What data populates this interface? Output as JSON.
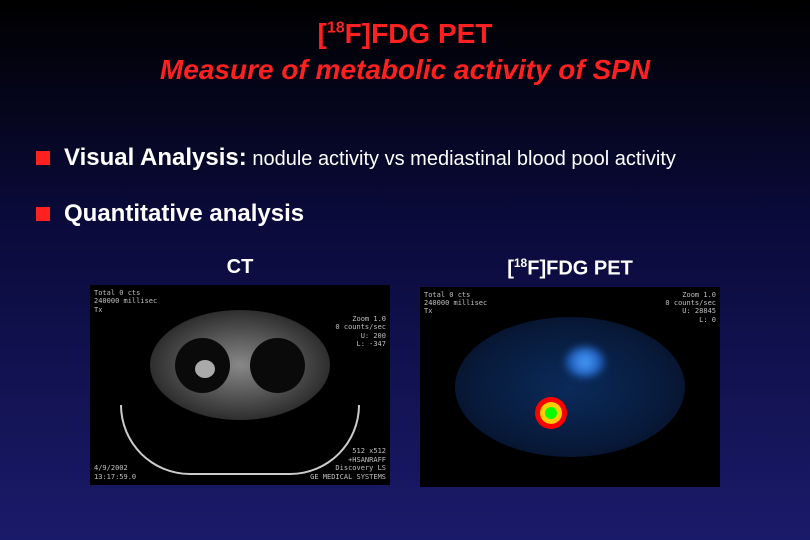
{
  "title": {
    "line1_prefix": "[",
    "line1_sup": "18",
    "line1_suffix": "F]FDG PET",
    "line2": "Measure of metabolic activity of SPN"
  },
  "bullets": [
    {
      "bold": "Visual Analysis:",
      "desc": " nodule activity vs mediastinal blood pool activity"
    },
    {
      "bold": "Quantitative analysis",
      "desc": ""
    }
  ],
  "images": {
    "ct": {
      "label": "CT",
      "meta_tl": "Total   0 cts\n240000 millisec\nTx",
      "meta_bl": "4/9/2002\n13:17:59.0",
      "meta_tr": "Zoom  1.0\n0 counts/sec\nU: 200\nL: -347",
      "meta_br": "512   x512\n+HSANRAFF\nDiscovery LS\nGE MEDICAL SYSTEMS"
    },
    "pet": {
      "label_prefix": "[",
      "label_sup": "18",
      "label_suffix": "F]FDG PET",
      "meta_tl": "Total   0 cts\n240000 millisec\nTx",
      "meta_tr": "Zoom  1.0\n0 counts/sec\nU: 28845\nL: 0",
      "meta_br": ""
    }
  },
  "colors": {
    "title_color": "#ff2020",
    "bullet_marker": "#ff2020",
    "text_color": "#ffffff",
    "bg_top": "#000000",
    "bg_bottom": "#1a1a6a"
  }
}
